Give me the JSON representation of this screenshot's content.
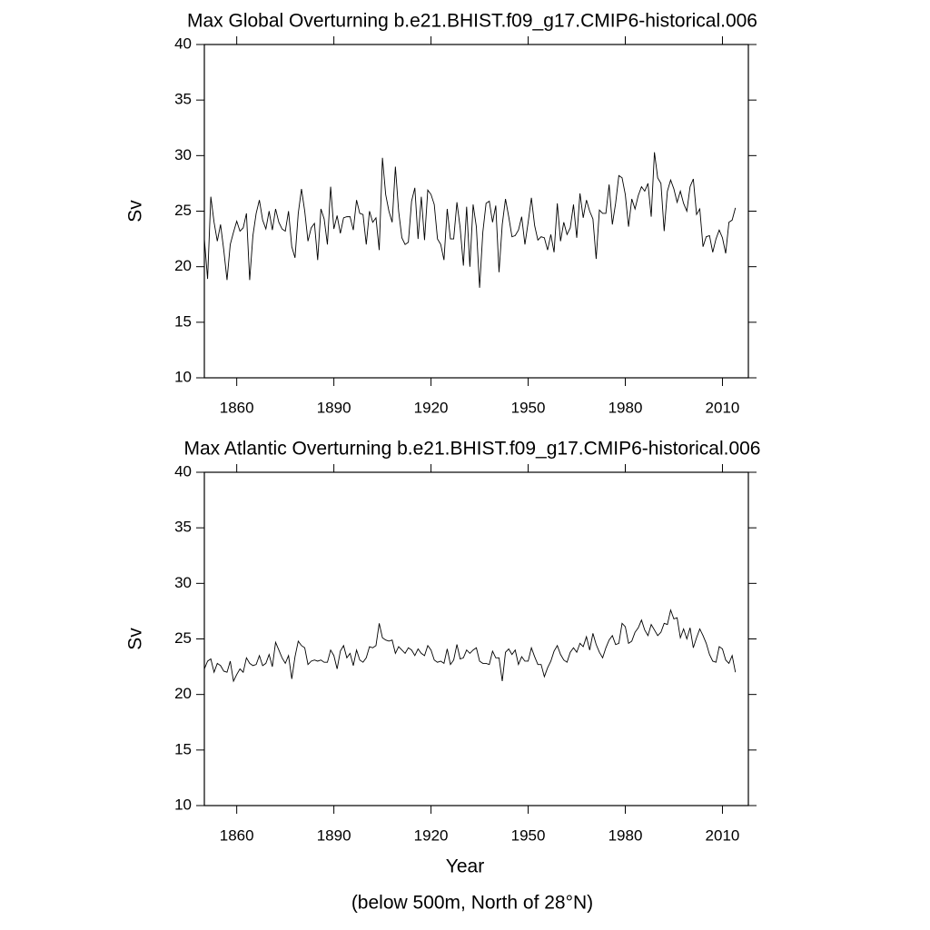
{
  "chart_data": [
    {
      "type": "line",
      "title": "Max Global Overturning b.e21.BHIST.f09_g17.CMIP6-historical.006",
      "y_label": "Sv",
      "color": "#000000",
      "x": [
        1850,
        1851,
        1852,
        1853,
        1854,
        1855,
        1856,
        1857,
        1858,
        1859,
        1860,
        1861,
        1862,
        1863,
        1864,
        1865,
        1866,
        1867,
        1868,
        1869,
        1870,
        1871,
        1872,
        1873,
        1874,
        1875,
        1876,
        1877,
        1878,
        1879,
        1880,
        1881,
        1882,
        1883,
        1884,
        1885,
        1886,
        1887,
        1888,
        1889,
        1890,
        1891,
        1892,
        1893,
        1894,
        1895,
        1896,
        1897,
        1898,
        1899,
        1900,
        1901,
        1902,
        1903,
        1904,
        1905,
        1906,
        1907,
        1908,
        1909,
        1910,
        1911,
        1912,
        1913,
        1914,
        1915,
        1916,
        1917,
        1918,
        1919,
        1920,
        1921,
        1922,
        1923,
        1924,
        1925,
        1926,
        1927,
        1928,
        1929,
        1930,
        1931,
        1932,
        1933,
        1934,
        1935,
        1936,
        1937,
        1938,
        1939,
        1940,
        1941,
        1942,
        1943,
        1944,
        1945,
        1946,
        1947,
        1948,
        1949,
        1950,
        1951,
        1952,
        1953,
        1954,
        1955,
        1956,
        1957,
        1958,
        1959,
        1960,
        1961,
        1962,
        1963,
        1964,
        1965,
        1966,
        1967,
        1968,
        1969,
        1970,
        1971,
        1972,
        1973,
        1974,
        1975,
        1976,
        1977,
        1978,
        1979,
        1980,
        1981,
        1982,
        1983,
        1984,
        1985,
        1986,
        1987,
        1988,
        1989,
        1990,
        1991,
        1992,
        1993,
        1994,
        1995,
        1996,
        1997,
        1998,
        1999,
        2000,
        2001,
        2002,
        2003,
        2004,
        2005,
        2006,
        2007,
        2008,
        2009,
        2010,
        2011,
        2012,
        2013,
        2014
      ],
      "values": [
        22.5,
        18.9,
        26.3,
        24.0,
        22.3,
        23.8,
        21.5,
        18.8,
        22.0,
        23.1,
        24.1,
        23.2,
        23.5,
        24.8,
        18.8,
        22.8,
        24.8,
        26.0,
        24.2,
        23.4,
        25.0,
        23.3,
        25.2,
        24.0,
        23.4,
        23.2,
        25.0,
        21.8,
        20.8,
        24.8,
        27.0,
        25.0,
        22.3,
        23.5,
        23.9,
        20.6,
        25.2,
        24.3,
        22.0,
        27.2,
        23.4,
        24.6,
        23.0,
        24.4,
        24.5,
        24.5,
        23.3,
        26.0,
        24.8,
        24.7,
        22.0,
        25.0,
        24.0,
        24.4,
        21.5,
        29.8,
        26.5,
        25.0,
        24.0,
        29.0,
        25.0,
        22.6,
        22.0,
        22.2,
        25.9,
        27.1,
        22.5,
        26.3,
        22.4,
        26.9,
        26.5,
        25.6,
        22.5,
        22.0,
        20.6,
        25.2,
        22.5,
        22.5,
        25.8,
        23.5,
        20.1,
        25.4,
        20.0,
        25.6,
        23.6,
        18.1,
        23.1,
        25.7,
        25.9,
        24.0,
        25.5,
        19.5,
        23.8,
        26.1,
        24.5,
        22.7,
        22.8,
        23.3,
        24.5,
        22.0,
        24.0,
        26.2,
        23.7,
        22.4,
        22.7,
        22.6,
        21.5,
        22.9,
        21.3,
        25.7,
        22.3,
        24.0,
        22.9,
        23.5,
        25.6,
        22.6,
        26.6,
        24.4,
        26.0,
        25.0,
        24.3,
        20.7,
        25.1,
        24.8,
        24.8,
        27.4,
        23.8,
        25.7,
        28.2,
        28.0,
        26.5,
        23.6,
        26.1,
        25.2,
        26.4,
        27.2,
        26.8,
        27.5,
        24.5,
        30.3,
        28.0,
        27.5,
        23.2,
        26.8,
        27.8,
        27.0,
        25.8,
        26.8,
        25.7,
        25.0,
        27.2,
        27.9,
        24.7,
        25.2,
        21.8,
        22.7,
        22.8,
        21.3,
        22.5,
        23.3,
        22.6,
        21.2,
        24.0,
        24.2,
        25.3
      ],
      "xlim": [
        1850,
        2018
      ],
      "xticks": [
        1860,
        1890,
        1920,
        1950,
        1980,
        2010
      ],
      "ylim": [
        10,
        40
      ],
      "yticks": [
        10,
        15,
        20,
        25,
        30,
        35,
        40
      ]
    },
    {
      "type": "line",
      "title": "Max Atlantic Overturning b.e21.BHIST.f09_g17.CMIP6-historical.006",
      "y_label": "Sv",
      "x_label": "Year",
      "note": "(below 500m, North of 28°N)",
      "color": "#000000",
      "x": [
        1850,
        1851,
        1852,
        1853,
        1854,
        1855,
        1856,
        1857,
        1858,
        1859,
        1860,
        1861,
        1862,
        1863,
        1864,
        1865,
        1866,
        1867,
        1868,
        1869,
        1870,
        1871,
        1872,
        1873,
        1874,
        1875,
        1876,
        1877,
        1878,
        1879,
        1880,
        1881,
        1882,
        1883,
        1884,
        1885,
        1886,
        1887,
        1888,
        1889,
        1890,
        1891,
        1892,
        1893,
        1894,
        1895,
        1896,
        1897,
        1898,
        1899,
        1900,
        1901,
        1902,
        1903,
        1904,
        1905,
        1906,
        1907,
        1908,
        1909,
        1910,
        1911,
        1912,
        1913,
        1914,
        1915,
        1916,
        1917,
        1918,
        1919,
        1920,
        1921,
        1922,
        1923,
        1924,
        1925,
        1926,
        1927,
        1928,
        1929,
        1930,
        1931,
        1932,
        1933,
        1934,
        1935,
        1936,
        1937,
        1938,
        1939,
        1940,
        1941,
        1942,
        1943,
        1944,
        1945,
        1946,
        1947,
        1948,
        1949,
        1950,
        1951,
        1952,
        1953,
        1954,
        1955,
        1956,
        1957,
        1958,
        1959,
        1960,
        1961,
        1962,
        1963,
        1964,
        1965,
        1966,
        1967,
        1968,
        1969,
        1970,
        1971,
        1972,
        1973,
        1974,
        1975,
        1976,
        1977,
        1978,
        1979,
        1980,
        1981,
        1982,
        1983,
        1984,
        1985,
        1986,
        1987,
        1988,
        1989,
        1990,
        1991,
        1992,
        1993,
        1994,
        1995,
        1996,
        1997,
        1998,
        1999,
        2000,
        2001,
        2002,
        2003,
        2004,
        2005,
        2006,
        2007,
        2008,
        2009,
        2010,
        2011,
        2012,
        2013,
        2014
      ],
      "values": [
        22.3,
        23.0,
        23.2,
        22.0,
        22.8,
        22.6,
        22.1,
        22.0,
        23.0,
        21.2,
        21.8,
        22.3,
        22.0,
        23.3,
        22.8,
        22.6,
        22.7,
        23.5,
        22.6,
        22.8,
        23.6,
        22.5,
        24.7,
        24.0,
        23.3,
        22.8,
        23.5,
        21.4,
        23.4,
        24.8,
        24.4,
        24.2,
        22.7,
        23.0,
        23.1,
        23.0,
        23.1,
        22.9,
        22.9,
        24.0,
        23.5,
        22.3,
        23.9,
        24.4,
        23.3,
        23.7,
        22.6,
        24.0,
        23.1,
        22.9,
        23.3,
        24.3,
        24.2,
        24.4,
        26.4,
        25.1,
        24.9,
        24.8,
        24.9,
        23.7,
        24.3,
        24.0,
        23.7,
        24.2,
        24.0,
        23.5,
        24.1,
        23.7,
        23.5,
        24.4,
        24.0,
        23.1,
        22.9,
        23.0,
        22.8,
        24.1,
        22.7,
        23.1,
        24.5,
        23.2,
        23.3,
        24.0,
        23.7,
        24.0,
        24.2,
        23.0,
        22.8,
        22.8,
        22.7,
        23.9,
        23.3,
        23.3,
        21.2,
        23.8,
        24.1,
        23.6,
        24.0,
        22.7,
        23.4,
        23.0,
        23.0,
        24.2,
        23.4,
        22.7,
        22.7,
        21.6,
        22.4,
        23.0,
        23.9,
        24.4,
        23.6,
        23.1,
        22.9,
        23.8,
        24.2,
        23.8,
        24.6,
        24.3,
        25.2,
        24.0,
        25.5,
        24.5,
        23.8,
        23.3,
        24.2,
        24.9,
        25.3,
        24.5,
        24.6,
        26.4,
        26.1,
        24.6,
        24.8,
        25.6,
        26.0,
        26.7,
        25.8,
        25.3,
        26.3,
        25.8,
        25.3,
        25.6,
        26.4,
        26.3,
        27.6,
        26.8,
        26.9,
        25.1,
        25.9,
        25.0,
        26.0,
        24.2,
        25.1,
        25.9,
        25.3,
        24.6,
        23.6,
        23.0,
        22.9,
        24.3,
        24.1,
        23.1,
        22.8,
        23.5,
        22.0
      ],
      "xlim": [
        1850,
        2018
      ],
      "xticks": [
        1860,
        1890,
        1920,
        1950,
        1980,
        2010
      ],
      "ylim": [
        10,
        40
      ],
      "yticks": [
        10,
        15,
        20,
        25,
        30,
        35,
        40
      ]
    }
  ]
}
